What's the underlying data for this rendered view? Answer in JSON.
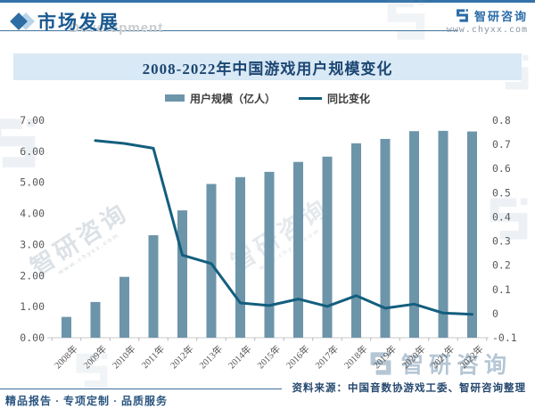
{
  "header": {
    "title": "市场发展",
    "watermark_en": "Development",
    "brand": "智研咨询",
    "website": "www.chyxx.com"
  },
  "chart_data": {
    "type": "bar+line",
    "title": "2008-2022年中国游戏用户规模变化",
    "categories": [
      "2008年",
      "2009年",
      "2010年",
      "2011年",
      "2012年",
      "2013年",
      "2014年",
      "2015年",
      "2016年",
      "2017年",
      "2018年",
      "2019年",
      "2020年",
      "2021年",
      "2022年"
    ],
    "series": [
      {
        "name": "用户规模（亿人）",
        "type": "bar",
        "axis": "left",
        "color": "#6d95aa",
        "values": [
          0.67,
          1.15,
          1.96,
          3.3,
          4.1,
          4.95,
          5.17,
          5.34,
          5.66,
          5.83,
          6.26,
          6.4,
          6.65,
          6.66,
          6.64
        ]
      },
      {
        "name": "同比变化",
        "type": "line",
        "axis": "right",
        "color": "#135e7e",
        "values": [
          null,
          0.716,
          0.704,
          0.684,
          0.242,
          0.207,
          0.044,
          0.033,
          0.06,
          0.03,
          0.074,
          0.022,
          0.039,
          0.002,
          -0.003
        ]
      }
    ],
    "left_axis": {
      "min": 0,
      "max": 7,
      "ticks": [
        "7.00",
        "6.00",
        "5.00",
        "4.00",
        "3.00",
        "2.00",
        "1.00",
        "0.00"
      ]
    },
    "right_axis": {
      "min": -0.1,
      "max": 0.8,
      "ticks": [
        "0.8",
        "0.7",
        "0.6",
        "0.5",
        "0.4",
        "0.3",
        "0.2",
        "0.1",
        "0",
        "-0.1"
      ]
    },
    "legend_position": "top",
    "grid": false
  },
  "footer": {
    "tagline": "精品报告 · 专项定制 · 品质服务",
    "source": "资料来源：中国音数协游戏工委、智研咨询整理"
  },
  "watermark": {
    "text": "智研咨询",
    "subtext": "www.chyxx.com"
  },
  "colors": {
    "accent_blue": "#2b6ca8",
    "banner_bg": "#d9e9f5",
    "axis_text": "#58595b"
  }
}
